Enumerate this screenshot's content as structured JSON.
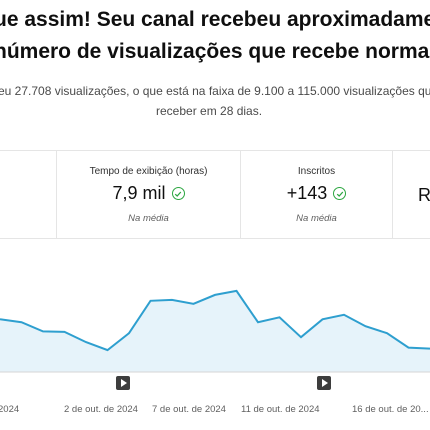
{
  "headline": {
    "line1": "ue assim! Seu canal recebeu aproximadame",
    "line2": "número de visualizações que recebe normalı"
  },
  "subtitle": {
    "line1": "eu 27.708 visualizações, o que está na faixa de 9.100 a 115.000 visualizações que",
    "line2": "receber em 28 dias."
  },
  "metrics": [
    {
      "label": "Tempo de exibição (horas)",
      "value": "7,9 mil",
      "note": "Na média",
      "icon": "check-circle-icon"
    },
    {
      "label": "Inscritos",
      "value": "+143",
      "note": "Na média",
      "icon": "check-circle-icon"
    }
  ],
  "partial_metric_value": "R",
  "colors": {
    "line": "#2e9fcf",
    "fill": "#e6f3fa",
    "check": "#2ba640"
  },
  "chart_data": {
    "type": "area",
    "x_tick_labels": [
      "2024",
      "2 de out. de 2024",
      "7 de out. de 2024",
      "11 de out. de 2024",
      "16 de out. de 20..."
    ],
    "values": [
      1060,
      1000,
      815,
      805,
      600,
      440,
      780,
      1430,
      1450,
      1370,
      1550,
      1630,
      1000,
      1100,
      700,
      1060,
      1150,
      920,
      780,
      490,
      470
    ],
    "ylim": [
      0,
      2050
    ],
    "grid": false,
    "publish_markers": 2
  }
}
